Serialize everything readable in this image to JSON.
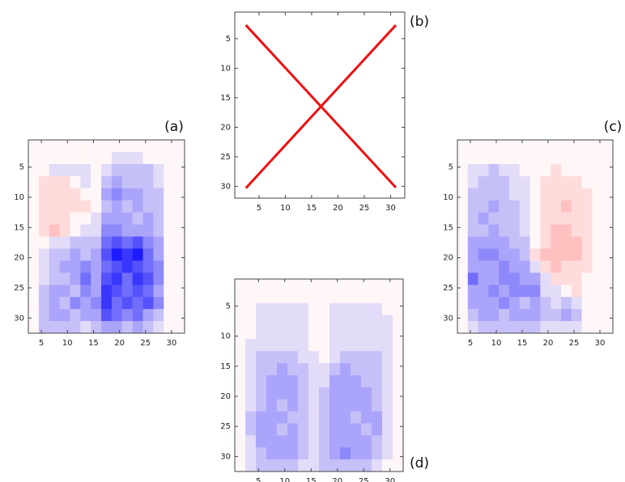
{
  "chart_data": [
    {
      "type": "heatmap",
      "label": "(a)",
      "xlim": [
        2.5,
        32.5
      ],
      "ylim": [
        0.5,
        32.5
      ],
      "yreverse": true,
      "xticks": [
        5,
        10,
        15,
        20,
        25,
        30
      ],
      "yticks": [
        5,
        10,
        15,
        20,
        25,
        30
      ],
      "clim": [
        -9,
        9
      ],
      "cmap": [
        "#ff0000",
        "#fff7f7",
        "#0000ff"
      ],
      "xbins": [
        2.5,
        4.5,
        6.5,
        8.5,
        10.5,
        12.5,
        14.5,
        16.5,
        18.5,
        20.5,
        22.5,
        24.5,
        26.5,
        28.5,
        30.5,
        32.5
      ],
      "ybins": [
        0.5,
        2.5,
        4.5,
        6.5,
        8.5,
        10.5,
        12.5,
        14.5,
        16.5,
        18.5,
        20.5,
        22.5,
        24.5,
        26.5,
        28.5,
        30.5,
        32.5
      ],
      "values": [
        [
          0,
          0,
          0,
          0,
          0,
          0,
          0,
          0,
          0,
          0,
          0,
          0,
          0,
          0,
          0
        ],
        [
          0,
          0,
          0,
          0,
          0,
          0,
          0,
          0,
          1,
          1,
          1,
          0,
          0,
          0,
          0
        ],
        [
          0,
          0,
          1,
          1,
          1,
          1,
          0,
          1,
          2,
          2,
          2,
          2,
          1,
          0,
          0
        ],
        [
          0,
          -1,
          -1,
          -1,
          0,
          1,
          0,
          2,
          3,
          2,
          2,
          2,
          1,
          0,
          0
        ],
        [
          0,
          -1,
          -1,
          -1,
          -1,
          0,
          0,
          3,
          4,
          3,
          3,
          2,
          2,
          0,
          0
        ],
        [
          0,
          -1,
          -1,
          -1,
          -1,
          -1,
          0,
          2,
          3,
          2,
          3,
          2,
          2,
          0,
          0
        ],
        [
          0,
          -1,
          -1,
          -1,
          0,
          0,
          1,
          3,
          3,
          3,
          2,
          3,
          2,
          0,
          0
        ],
        [
          0,
          -1,
          -2,
          -1,
          0,
          1,
          1,
          4,
          4,
          3,
          3,
          3,
          2,
          0,
          0
        ],
        [
          0,
          0,
          1,
          1,
          2,
          2,
          2,
          5,
          6,
          5,
          6,
          4,
          3,
          0,
          0
        ],
        [
          0,
          1,
          2,
          2,
          3,
          2,
          3,
          6,
          8,
          7,
          8,
          5,
          3,
          0,
          0
        ],
        [
          0,
          1,
          2,
          3,
          3,
          4,
          3,
          5,
          6,
          7,
          6,
          5,
          4,
          0,
          0
        ],
        [
          0,
          1,
          2,
          2,
          3,
          5,
          3,
          6,
          7,
          5,
          7,
          6,
          4,
          0,
          0
        ],
        [
          0,
          2,
          3,
          3,
          2,
          4,
          3,
          7,
          6,
          5,
          6,
          5,
          3,
          0,
          0
        ],
        [
          0,
          2,
          3,
          2,
          4,
          3,
          4,
          7,
          5,
          6,
          5,
          6,
          4,
          0,
          0
        ],
        [
          0,
          2,
          3,
          3,
          2,
          3,
          3,
          6,
          5,
          4,
          5,
          3,
          2,
          0,
          0
        ],
        [
          0,
          2,
          2,
          2,
          2,
          1,
          2,
          3,
          3,
          2,
          3,
          2,
          1,
          0,
          0
        ]
      ]
    },
    {
      "type": "line",
      "label": "(b)",
      "xlim": [
        0.4,
        32.7
      ],
      "ylim": [
        0.5,
        32
      ],
      "yreverse": true,
      "xticks": [
        5,
        10,
        15,
        20,
        25,
        30
      ],
      "yticks": [
        5,
        10,
        15,
        20,
        25,
        30
      ],
      "series": [
        {
          "color": "#ee1111",
          "x": [
            2.5,
            31
          ],
          "values": [
            2.7,
            30.2
          ]
        },
        {
          "color": "#ee1111",
          "x": [
            2.5,
            31
          ],
          "values": [
            30.3,
            2.7
          ]
        }
      ]
    },
    {
      "type": "heatmap",
      "label": "(c)",
      "xlim": [
        2.5,
        32.5
      ],
      "ylim": [
        0.5,
        32.5
      ],
      "yreverse": true,
      "xticks": [
        5,
        10,
        15,
        20,
        25,
        30
      ],
      "yticks": [
        5,
        10,
        15,
        20,
        25,
        30
      ],
      "clim": [
        -9,
        9
      ],
      "cmap": [
        "#ff0000",
        "#fff7f7",
        "#0000ff"
      ],
      "xbins": [
        2.5,
        4.5,
        6.5,
        8.5,
        10.5,
        12.5,
        14.5,
        16.5,
        18.5,
        20.5,
        22.5,
        24.5,
        26.5,
        28.5,
        30.5,
        32.5
      ],
      "ybins": [
        0.5,
        2.5,
        4.5,
        6.5,
        8.5,
        10.5,
        12.5,
        14.5,
        16.5,
        18.5,
        20.5,
        22.5,
        24.5,
        26.5,
        28.5,
        30.5,
        32.5
      ],
      "values": [
        [
          0,
          0,
          0,
          0,
          0,
          0,
          0,
          0,
          0,
          0,
          0,
          0,
          0,
          0,
          0
        ],
        [
          0,
          0,
          0,
          0,
          0,
          0,
          0,
          0,
          0,
          0,
          0,
          0,
          0,
          0,
          0
        ],
        [
          0,
          1,
          1,
          2,
          1,
          1,
          0,
          0,
          0,
          -1,
          0,
          0,
          0,
          0,
          0
        ],
        [
          0,
          1,
          2,
          2,
          2,
          1,
          1,
          0,
          -1,
          -1,
          -1,
          -1,
          0,
          0,
          0
        ],
        [
          0,
          2,
          2,
          2,
          2,
          1,
          1,
          0,
          -1,
          -1,
          -1,
          -1,
          -1,
          0,
          0
        ],
        [
          0,
          2,
          2,
          3,
          2,
          2,
          1,
          0,
          -1,
          -1,
          -2,
          -1,
          -1,
          0,
          0
        ],
        [
          0,
          2,
          3,
          2,
          2,
          2,
          1,
          0,
          -1,
          -1,
          -1,
          -1,
          -1,
          0,
          0
        ],
        [
          0,
          2,
          2,
          3,
          2,
          2,
          1,
          0,
          -1,
          -2,
          -2,
          -1,
          -1,
          0,
          0
        ],
        [
          0,
          3,
          3,
          3,
          3,
          2,
          2,
          0,
          -1,
          -2,
          -2,
          -2,
          -1,
          0,
          0
        ],
        [
          0,
          3,
          4,
          4,
          3,
          3,
          2,
          -1,
          -2,
          -2,
          -2,
          -2,
          -1,
          0,
          0
        ],
        [
          0,
          3,
          3,
          3,
          4,
          3,
          3,
          1,
          -1,
          -2,
          -1,
          -1,
          -1,
          0,
          0
        ],
        [
          0,
          5,
          3,
          3,
          4,
          4,
          3,
          3,
          1,
          -1,
          -1,
          -1,
          0,
          0,
          0
        ],
        [
          0,
          3,
          3,
          4,
          3,
          4,
          4,
          4,
          1,
          1,
          0,
          -1,
          0,
          0,
          0
        ],
        [
          0,
          3,
          3,
          3,
          4,
          3,
          2,
          3,
          2,
          1,
          2,
          1,
          0,
          0,
          0
        ],
        [
          0,
          2,
          3,
          3,
          2,
          3,
          3,
          3,
          2,
          2,
          3,
          2,
          0,
          0,
          0
        ],
        [
          0,
          1,
          2,
          2,
          2,
          2,
          2,
          2,
          1,
          1,
          1,
          1,
          0,
          0,
          0
        ]
      ]
    },
    {
      "type": "heatmap",
      "label": "(d)",
      "xlim": [
        0.5,
        32.5
      ],
      "ylim": [
        0.5,
        32.5
      ],
      "yreverse": true,
      "xticks": [
        5,
        10,
        15,
        20,
        25,
        30
      ],
      "yticks": [
        5,
        10,
        15,
        20,
        25,
        30
      ],
      "clim": [
        -9,
        9
      ],
      "cmap": [
        "#ff0000",
        "#fff7f7",
        "#0000ff"
      ],
      "xbins": [
        0.5,
        2.5,
        4.5,
        6.5,
        8.5,
        10.5,
        12.5,
        14.5,
        16.5,
        18.5,
        20.5,
        22.5,
        24.5,
        26.5,
        28.5,
        30.5,
        32.5
      ],
      "ybins": [
        0.5,
        2.5,
        4.5,
        6.5,
        8.5,
        10.5,
        12.5,
        14.5,
        16.5,
        18.5,
        20.5,
        22.5,
        24.5,
        26.5,
        28.5,
        30.5,
        32.5
      ],
      "values": [
        [
          0,
          0,
          0,
          0,
          0,
          0,
          0,
          0,
          0,
          0,
          0,
          0,
          0,
          0,
          0,
          0
        ],
        [
          0,
          0,
          0,
          0,
          0,
          0,
          0,
          0,
          0,
          0,
          0,
          0,
          0,
          0,
          0,
          0
        ],
        [
          0,
          0,
          1,
          1,
          1,
          1,
          1,
          0,
          0,
          1,
          1,
          1,
          1,
          1,
          0,
          0
        ],
        [
          0,
          0,
          1,
          1,
          1,
          1,
          1,
          0,
          0,
          1,
          1,
          1,
          1,
          1,
          1,
          0
        ],
        [
          0,
          0,
          1,
          1,
          1,
          1,
          1,
          0,
          0,
          1,
          1,
          1,
          1,
          1,
          1,
          0
        ],
        [
          0,
          1,
          1,
          1,
          1,
          1,
          1,
          0,
          0,
          1,
          1,
          1,
          1,
          1,
          1,
          0
        ],
        [
          0,
          1,
          2,
          2,
          2,
          2,
          1,
          1,
          0,
          1,
          2,
          2,
          2,
          2,
          1,
          0
        ],
        [
          0,
          1,
          2,
          2,
          3,
          2,
          2,
          1,
          1,
          2,
          3,
          2,
          2,
          2,
          1,
          0
        ],
        [
          0,
          1,
          2,
          3,
          3,
          3,
          2,
          1,
          1,
          3,
          3,
          3,
          2,
          2,
          1,
          0
        ],
        [
          0,
          1,
          2,
          3,
          3,
          3,
          2,
          1,
          2,
          3,
          3,
          3,
          3,
          2,
          1,
          0
        ],
        [
          0,
          1,
          2,
          3,
          2,
          3,
          2,
          1,
          2,
          3,
          3,
          3,
          3,
          2,
          1,
          0
        ],
        [
          0,
          2,
          3,
          3,
          3,
          2,
          2,
          1,
          2,
          3,
          3,
          2,
          3,
          3,
          1,
          0
        ],
        [
          0,
          2,
          3,
          3,
          2,
          3,
          2,
          1,
          2,
          3,
          3,
          3,
          2,
          3,
          1,
          0
        ],
        [
          0,
          1,
          3,
          3,
          3,
          3,
          2,
          1,
          2,
          3,
          3,
          3,
          3,
          2,
          1,
          0
        ],
        [
          0,
          1,
          2,
          3,
          3,
          3,
          2,
          1,
          2,
          3,
          4,
          3,
          3,
          2,
          1,
          0
        ],
        [
          0,
          1,
          2,
          2,
          2,
          2,
          1,
          1,
          2,
          2,
          2,
          2,
          2,
          1,
          0,
          0
        ]
      ]
    }
  ]
}
